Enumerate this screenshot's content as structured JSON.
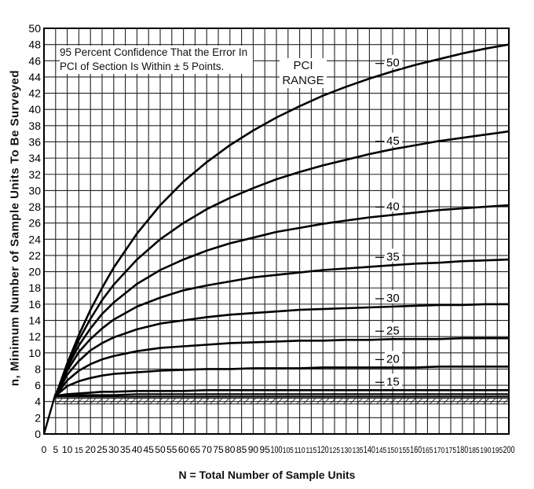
{
  "chart_data": {
    "type": "line",
    "title": "",
    "annotation": "95 Percent Confidence That the Error In PCI of Section Is Within ± 5 Points.",
    "legend_title": "PCI RANGE",
    "xlabel": "N = Total Number of Sample Units",
    "ylabel": "n, Minimum Number of Sample Units To Be Surveyed",
    "xlim": [
      0,
      200
    ],
    "ylim": [
      0,
      50
    ],
    "grid": true,
    "x_ticks": [
      0,
      5,
      10,
      15,
      20,
      25,
      30,
      35,
      40,
      45,
      50,
      55,
      60,
      65,
      70,
      75,
      80,
      85,
      90,
      95,
      100,
      105,
      110,
      115,
      120,
      125,
      130,
      135,
      140,
      145,
      150,
      155,
      160,
      165,
      170,
      175,
      180,
      185,
      190,
      195,
      200
    ],
    "y_ticks": [
      0,
      2,
      4,
      6,
      8,
      10,
      12,
      14,
      16,
      18,
      20,
      22,
      24,
      26,
      28,
      30,
      32,
      34,
      36,
      38,
      40,
      42,
      44,
      46,
      48,
      50
    ],
    "x": [
      5,
      10,
      15,
      20,
      25,
      30,
      40,
      50,
      60,
      70,
      80,
      90,
      100,
      110,
      120,
      130,
      140,
      150,
      160,
      170,
      180,
      190,
      200
    ],
    "series": [
      {
        "name": "50",
        "values": [
          4.7,
          8.7,
          12.2,
          15.3,
          18.0,
          20.5,
          24.7,
          28.2,
          31.1,
          33.5,
          35.6,
          37.4,
          39.0,
          40.4,
          41.7,
          42.8,
          43.8,
          44.7,
          45.5,
          46.2,
          46.9,
          47.5,
          48.0
        ]
      },
      {
        "name": "45",
        "values": [
          4.7,
          8.5,
          11.6,
          14.2,
          16.5,
          18.4,
          21.5,
          24.0,
          26.0,
          27.7,
          29.1,
          30.3,
          31.4,
          32.3,
          33.1,
          33.8,
          34.5,
          35.1,
          35.6,
          36.1,
          36.5,
          36.9,
          37.3
        ]
      },
      {
        "name": "40",
        "values": [
          4.7,
          8.2,
          10.9,
          13.0,
          14.8,
          16.2,
          18.5,
          20.2,
          21.5,
          22.6,
          23.5,
          24.2,
          24.9,
          25.4,
          25.9,
          26.3,
          26.7,
          27.0,
          27.3,
          27.6,
          27.8,
          28.0,
          28.2
        ]
      },
      {
        "name": "35",
        "values": [
          4.7,
          7.8,
          10.1,
          11.7,
          13.0,
          14.1,
          15.7,
          16.8,
          17.7,
          18.3,
          18.8,
          19.3,
          19.6,
          19.9,
          20.2,
          20.4,
          20.6,
          20.8,
          21.0,
          21.1,
          21.3,
          21.4,
          21.5
        ]
      },
      {
        "name": "30",
        "values": [
          4.7,
          7.3,
          9.0,
          10.3,
          11.2,
          11.9,
          12.9,
          13.6,
          14.0,
          14.4,
          14.7,
          14.9,
          15.1,
          15.3,
          15.4,
          15.5,
          15.6,
          15.7,
          15.8,
          15.9,
          15.9,
          16.0,
          16.0
        ]
      },
      {
        "name": "25",
        "values": [
          4.7,
          6.6,
          7.8,
          8.6,
          9.2,
          9.6,
          10.2,
          10.6,
          10.8,
          11.0,
          11.2,
          11.3,
          11.4,
          11.5,
          11.5,
          11.6,
          11.6,
          11.7,
          11.7,
          11.7,
          11.8,
          11.8,
          11.8
        ]
      },
      {
        "name": "20",
        "values": [
          4.7,
          5.9,
          6.5,
          6.9,
          7.2,
          7.4,
          7.6,
          7.8,
          7.9,
          8.0,
          8.0,
          8.1,
          8.1,
          8.1,
          8.2,
          8.2,
          8.2,
          8.2,
          8.2,
          8.3,
          8.3,
          8.3,
          8.3
        ]
      },
      {
        "name": "15",
        "values": [
          4.7,
          4.9,
          5.0,
          5.1,
          5.2,
          5.2,
          5.3,
          5.3,
          5.3,
          5.4,
          5.4,
          5.4,
          5.4,
          5.4,
          5.4,
          5.4,
          5.4,
          5.4,
          5.4,
          5.4,
          5.4,
          5.4,
          5.4
        ]
      },
      {
        "name": "",
        "values": [
          4.7,
          4.7,
          4.8,
          4.8,
          4.8,
          4.8,
          4.9,
          4.9,
          4.9,
          4.9,
          4.9,
          4.9,
          4.9,
          4.9,
          4.9,
          4.9,
          4.9,
          4.9,
          4.9,
          4.9,
          4.9,
          4.9,
          4.9
        ]
      },
      {
        "name": "",
        "values": [
          4.6,
          4.6,
          4.6,
          4.6,
          4.6,
          4.6,
          4.6,
          4.6,
          4.6,
          4.6,
          4.6,
          4.6,
          4.6,
          4.6,
          4.6,
          4.6,
          4.6,
          4.6,
          4.6,
          4.6,
          4.6,
          4.6,
          4.6
        ]
      }
    ],
    "floor_band": [
      3.7,
      4.4
    ],
    "diagonal_line": [
      [
        0,
        0
      ],
      [
        5,
        5
      ]
    ]
  }
}
